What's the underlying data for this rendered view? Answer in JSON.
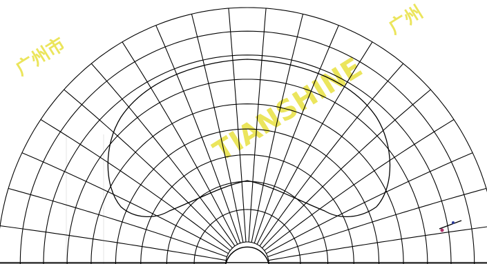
{
  "diagram": {
    "kind": "semicircular-polar-mesh",
    "line_color": "#000000",
    "background": "#ffffff",
    "radial_ring_count": 9,
    "angular_spoke_count": 21,
    "inner_loop": "cardioid-shaped dome"
  },
  "watermarks": {
    "color": "#e8e040",
    "texts": [
      "广州市",
      "TIANSHINE",
      "广州"
    ]
  }
}
